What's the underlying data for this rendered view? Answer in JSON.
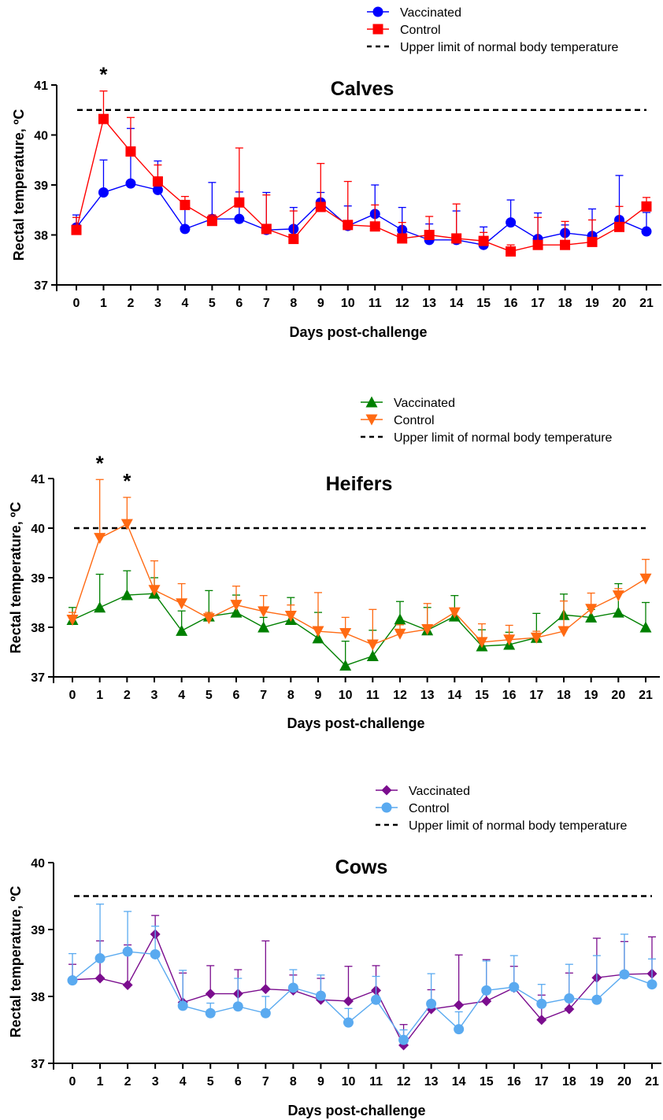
{
  "chart_data": [
    {
      "type": "line",
      "title": "Calves",
      "xlabel": "Days post-challenge",
      "ylabel": "Rectal temperature, ºC",
      "x": [
        0,
        1,
        2,
        3,
        4,
        5,
        6,
        7,
        8,
        9,
        10,
        11,
        12,
        13,
        14,
        15,
        16,
        17,
        18,
        19,
        20,
        21
      ],
      "ylim": [
        37,
        41
      ],
      "yticks": [
        37,
        38,
        39,
        40,
        41
      ],
      "grid": false,
      "legend_position": "top-right",
      "threshold": {
        "label": "Upper limit of normal body temperature",
        "value": 40.5,
        "color": "#000000"
      },
      "significance_marks": [
        {
          "x": 1,
          "label": "*"
        }
      ],
      "series": [
        {
          "name": "Vaccinated",
          "color": "#0000ff",
          "marker": "circle",
          "values": [
            38.15,
            38.85,
            39.03,
            38.9,
            38.12,
            38.32,
            38.32,
            38.1,
            38.12,
            38.65,
            38.18,
            38.42,
            38.1,
            37.9,
            37.9,
            37.8,
            38.25,
            37.92,
            38.04,
            37.98,
            38.3,
            38.07
          ],
          "error_upper": [
            38.4,
            39.5,
            40.13,
            39.48,
            38.6,
            39.05,
            38.86,
            38.85,
            38.55,
            38.85,
            38.58,
            39.0,
            38.55,
            38.22,
            38.48,
            38.16,
            38.7,
            38.44,
            38.2,
            38.52,
            39.19,
            38.45
          ]
        },
        {
          "name": "Control",
          "color": "#ff0000",
          "marker": "square",
          "values": [
            38.1,
            40.32,
            39.67,
            39.07,
            38.6,
            38.28,
            38.65,
            38.12,
            37.92,
            38.56,
            38.2,
            38.17,
            37.93,
            38.0,
            37.93,
            37.88,
            37.67,
            37.8,
            37.8,
            37.86,
            38.16,
            38.57
          ],
          "error_upper": [
            38.35,
            40.88,
            40.35,
            39.4,
            38.77,
            38.4,
            39.74,
            38.8,
            38.48,
            39.43,
            39.07,
            38.6,
            38.25,
            38.37,
            38.62,
            38.05,
            37.8,
            38.35,
            38.27,
            38.3,
            38.57,
            38.75
          ]
        }
      ]
    },
    {
      "type": "line",
      "title": "Heifers",
      "xlabel": "Days post-challenge",
      "ylabel": "Rectal temperature, ºC",
      "x": [
        0,
        1,
        2,
        3,
        4,
        5,
        6,
        7,
        8,
        9,
        10,
        11,
        12,
        13,
        14,
        15,
        16,
        17,
        18,
        19,
        20,
        21
      ],
      "ylim": [
        37,
        41
      ],
      "yticks": [
        37,
        38,
        39,
        40,
        41
      ],
      "grid": false,
      "legend_position": "top-right",
      "threshold": {
        "label": "Upper limit of normal body temperature",
        "value": 40.0,
        "color": "#000000"
      },
      "significance_marks": [
        {
          "x": 1,
          "label": "*"
        },
        {
          "x": 2,
          "label": "*"
        }
      ],
      "series": [
        {
          "name": "Vaccinated",
          "color": "#008000",
          "marker": "triangle-up",
          "values": [
            38.15,
            38.4,
            38.65,
            38.68,
            37.93,
            38.22,
            38.3,
            38.0,
            38.15,
            37.78,
            37.23,
            37.42,
            38.16,
            37.94,
            38.22,
            37.62,
            37.65,
            37.79,
            38.25,
            38.2,
            38.3,
            38.0
          ],
          "error_upper": [
            38.4,
            39.07,
            39.14,
            39.0,
            38.33,
            38.74,
            38.65,
            38.2,
            38.6,
            38.3,
            37.72,
            37.94,
            38.52,
            38.4,
            38.64,
            37.95,
            37.9,
            38.28,
            38.67,
            38.36,
            38.88,
            38.5
          ]
        },
        {
          "name": "Control",
          "color": "#ff6a13",
          "marker": "triangle-down",
          "values": [
            38.15,
            39.8,
            40.08,
            38.75,
            38.48,
            38.18,
            38.45,
            38.32,
            38.23,
            37.92,
            37.88,
            37.65,
            37.87,
            37.96,
            38.3,
            37.7,
            37.75,
            37.79,
            37.92,
            38.37,
            38.64,
            38.98
          ],
          "error_upper": [
            38.3,
            40.98,
            40.62,
            39.34,
            38.88,
            38.3,
            38.83,
            38.64,
            38.45,
            38.7,
            38.2,
            38.36,
            38.05,
            38.48,
            38.35,
            38.07,
            38.04,
            37.92,
            38.53,
            38.69,
            38.78,
            39.37
          ]
        }
      ]
    },
    {
      "type": "line",
      "title": "Cows",
      "xlabel": "Days post-challenge",
      "ylabel": "Rectal temperature, ºC",
      "x": [
        0,
        1,
        2,
        3,
        4,
        5,
        6,
        7,
        8,
        9,
        10,
        11,
        12,
        13,
        14,
        15,
        16,
        17,
        18,
        19,
        20,
        21
      ],
      "ylim": [
        37,
        40
      ],
      "yticks": [
        37,
        38,
        39,
        40
      ],
      "grid": false,
      "legend_position": "top-right",
      "threshold": {
        "label": "Upper limit of normal body temperature",
        "value": 39.5,
        "color": "#000000"
      },
      "significance_marks": [],
      "series": [
        {
          "name": "Vaccinated",
          "color": "#7b0d8e",
          "marker": "diamond",
          "values": [
            38.25,
            38.27,
            38.17,
            38.93,
            37.91,
            38.04,
            38.04,
            38.11,
            38.09,
            37.95,
            37.93,
            38.09,
            37.27,
            37.81,
            37.87,
            37.93,
            38.13,
            37.65,
            37.81,
            38.28,
            38.33,
            38.34
          ],
          "error_upper": [
            38.48,
            38.83,
            38.77,
            39.21,
            38.35,
            38.46,
            38.4,
            38.83,
            38.32,
            38.27,
            38.45,
            38.46,
            37.58,
            38.1,
            38.62,
            38.55,
            38.45,
            38.02,
            38.35,
            38.87,
            38.82,
            38.89
          ]
        },
        {
          "name": "Control",
          "color": "#5aaaf0",
          "marker": "circle",
          "values": [
            38.24,
            38.57,
            38.67,
            38.63,
            37.86,
            37.75,
            37.85,
            37.75,
            38.13,
            38.01,
            37.61,
            37.95,
            37.35,
            37.89,
            37.51,
            38.09,
            38.14,
            37.89,
            37.97,
            37.95,
            38.33,
            38.18
          ],
          "error_upper": [
            38.64,
            39.38,
            39.27,
            39.05,
            38.39,
            37.9,
            38.27,
            38.0,
            38.4,
            38.32,
            37.82,
            38.3,
            37.5,
            38.34,
            37.77,
            38.53,
            38.61,
            38.18,
            38.48,
            38.61,
            38.93,
            38.56
          ]
        }
      ]
    }
  ]
}
